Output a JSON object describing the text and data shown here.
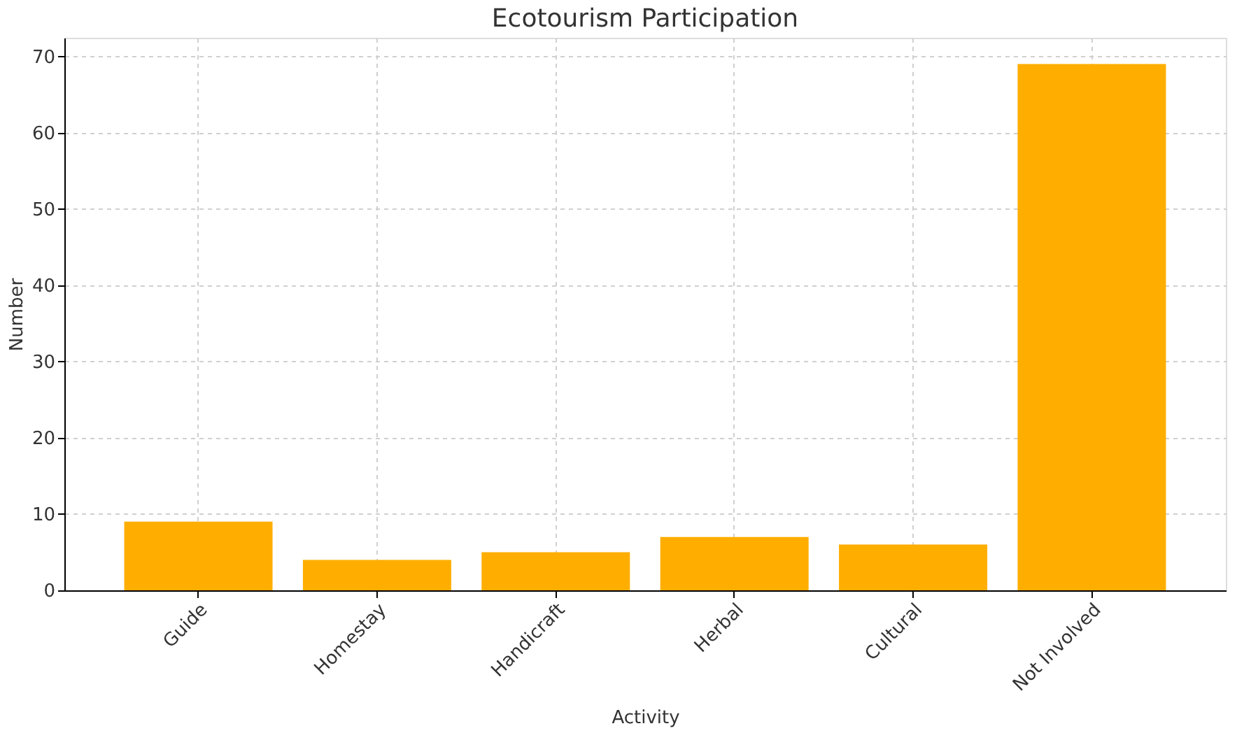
{
  "chart_data": {
    "type": "bar",
    "title": "Ecotourism Participation",
    "xlabel": "Activity",
    "ylabel": "Number",
    "categories": [
      "Guide",
      "Homestay",
      "Handicraft",
      "Herbal",
      "Cultural",
      "Not Involved"
    ],
    "values": [
      9,
      4,
      5,
      7,
      6,
      69
    ],
    "color": "#ffae00",
    "ylim": [
      0,
      72.45
    ],
    "yticks": [
      0,
      10,
      20,
      30,
      40,
      50,
      60,
      70
    ],
    "grid": true
  }
}
